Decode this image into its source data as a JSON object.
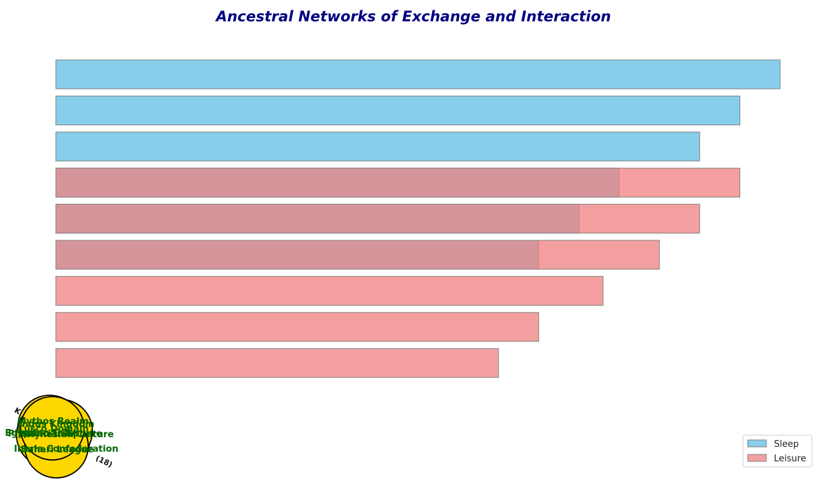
{
  "chart_data": [
    {
      "type": "bar",
      "orientation": "horizontal",
      "title": "Ancestral Networks of Exchange and Interaction",
      "xlabel": "",
      "ylabel": "",
      "grid": false,
      "legend_position": "bottom-right",
      "xlim": [
        0,
        18
      ],
      "categories": [
        "",
        "",
        "",
        "",
        "",
        "",
        "",
        "",
        ""
      ],
      "series": [
        {
          "name": "Sleep",
          "color": "#87CEEB",
          "values": [
            18,
            17,
            16,
            14,
            13,
            12,
            0,
            0,
            0
          ]
        },
        {
          "name": "Leisure",
          "color": "#F08080",
          "values": [
            0,
            0,
            0,
            17,
            16,
            15,
            13.6,
            12,
            11
          ]
        }
      ]
    },
    {
      "type": "network",
      "node_color": "#FFD700",
      "label_color": "#006400",
      "nodes": [
        "Mythos Realm",
        "Indus Kingdom",
        "Cusco Domain",
        "Polynesian Culture",
        "Egyptian Tribe",
        "Phoenician Sphere",
        "Iberia Confederation",
        "Bahari League"
      ],
      "edge_labels": [
        "K",
        "(18)"
      ]
    }
  ]
}
